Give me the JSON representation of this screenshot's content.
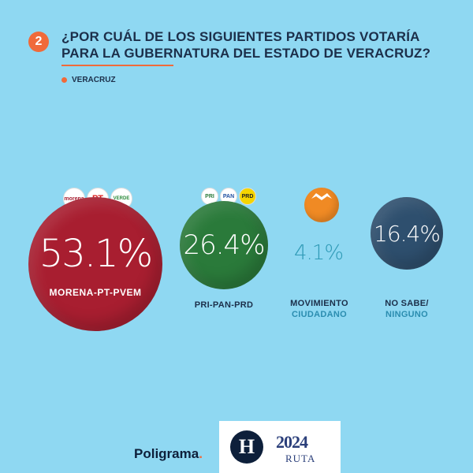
{
  "question": {
    "number": "2",
    "title": "¿POR CUÁL DE LOS SIGUIENTES PARTIDOS VOTARÍA PARA LA GUBERNATURA DEL ESTADO DE VERACRUZ?"
  },
  "region": "VERACRUZ",
  "colors": {
    "background": "#8fd8f2",
    "accent": "#f06a3a",
    "morena_pt_pvem": "#a81e30",
    "pri_pan_prd": "#2a7a3a",
    "movimiento_ciudadano": "#f08a24",
    "no_sabe": "#2e4f6e"
  },
  "chart_data": {
    "type": "bubble",
    "categories": [
      "MORENA-PT-PVEM",
      "PRI-PAN-PRD",
      "MOVIMIENTO CIUDADANO",
      "NO SABE/ NINGUNO"
    ],
    "values": [
      53.1,
      26.4,
      4.1,
      16.4
    ],
    "value_labels": [
      "53.1%",
      "26.4%",
      "4.1%",
      "16.4%"
    ],
    "unit": "%"
  },
  "labels": {
    "pri": "PRI-PAN-PRD",
    "mc_line1": "MOVIMIENTO",
    "mc_line2": "CIUDADANO",
    "ns_line1": "NO SABE/",
    "ns_line2": "NINGUNO"
  },
  "party_logos": {
    "morena": "morena",
    "pt": "PT",
    "verde": "VERDE",
    "pri": "PRI",
    "pan": "PAN",
    "prd": "PRD"
  },
  "footer": {
    "brand": "Poligrama",
    "brand_dot": ".",
    "h_logo": "H",
    "year": "2024",
    "ruta": "RUTA"
  }
}
